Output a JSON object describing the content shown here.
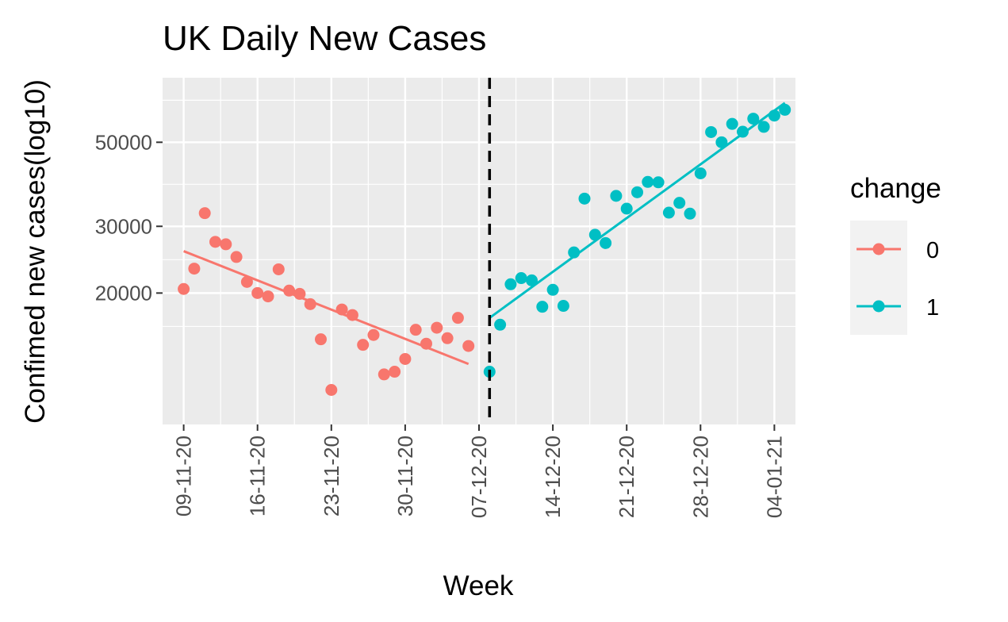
{
  "chart_data": {
    "type": "scatter",
    "title": "UK Daily New Cases",
    "xlabel": "Week",
    "ylabel": "Confimed new cases(log10)",
    "y_scale": "log10",
    "x_ticks": [
      "09-11-20",
      "16-11-20",
      "23-11-20",
      "30-11-20",
      "07-12-20",
      "14-12-20",
      "21-12-20",
      "28-12-20",
      "04-01-21"
    ],
    "y_ticks": [
      20000,
      30000,
      50000
    ],
    "y_tick_labels": [
      "20000",
      "30000",
      "50000"
    ],
    "xlim": [
      "2020-11-07",
      "2021-01-06"
    ],
    "ylim": [
      9000,
      74000
    ],
    "grid": true,
    "vline": {
      "x": "2020-12-08",
      "style": "dashed",
      "color": "#000000"
    },
    "legend": {
      "title": "change",
      "position": "right",
      "entries": [
        "0",
        "1"
      ]
    },
    "series": [
      {
        "name": "0",
        "color": "#F8766D",
        "points": [
          {
            "x": "2020-11-09",
            "y": 20500
          },
          {
            "x": "2020-11-10",
            "y": 23200
          },
          {
            "x": "2020-11-11",
            "y": 32500
          },
          {
            "x": "2020-11-12",
            "y": 27300
          },
          {
            "x": "2020-11-13",
            "y": 26900
          },
          {
            "x": "2020-11-14",
            "y": 24900
          },
          {
            "x": "2020-11-15",
            "y": 21400
          },
          {
            "x": "2020-11-16",
            "y": 20000
          },
          {
            "x": "2020-11-17",
            "y": 19600
          },
          {
            "x": "2020-11-18",
            "y": 23100
          },
          {
            "x": "2020-11-19",
            "y": 20300
          },
          {
            "x": "2020-11-20",
            "y": 19900
          },
          {
            "x": "2020-11-21",
            "y": 18700
          },
          {
            "x": "2020-11-22",
            "y": 15100
          },
          {
            "x": "2020-11-23",
            "y": 11100
          },
          {
            "x": "2020-11-24",
            "y": 18100
          },
          {
            "x": "2020-11-25",
            "y": 17500
          },
          {
            "x": "2020-11-26",
            "y": 14600
          },
          {
            "x": "2020-11-27",
            "y": 15500
          },
          {
            "x": "2020-11-28",
            "y": 12200
          },
          {
            "x": "2020-11-29",
            "y": 12400
          },
          {
            "x": "2020-11-30",
            "y": 13400
          },
          {
            "x": "2020-12-01",
            "y": 16000
          },
          {
            "x": "2020-12-02",
            "y": 14700
          },
          {
            "x": "2020-12-03",
            "y": 16200
          },
          {
            "x": "2020-12-04",
            "y": 15200
          },
          {
            "x": "2020-12-05",
            "y": 17200
          },
          {
            "x": "2020-12-06",
            "y": 14500
          }
        ],
        "trend": [
          {
            "x": "2020-11-09",
            "y": 25800
          },
          {
            "x": "2020-12-06",
            "y": 13000
          }
        ]
      },
      {
        "name": "1",
        "color": "#00BFC4",
        "points": [
          {
            "x": "2020-12-08",
            "y": 12400
          },
          {
            "x": "2020-12-09",
            "y": 16500
          },
          {
            "x": "2020-12-10",
            "y": 21100
          },
          {
            "x": "2020-12-11",
            "y": 21900
          },
          {
            "x": "2020-12-12",
            "y": 21600
          },
          {
            "x": "2020-12-13",
            "y": 18400
          },
          {
            "x": "2020-12-14",
            "y": 20400
          },
          {
            "x": "2020-12-15",
            "y": 18500
          },
          {
            "x": "2020-12-16",
            "y": 25600
          },
          {
            "x": "2020-12-17",
            "y": 35500
          },
          {
            "x": "2020-12-18",
            "y": 28500
          },
          {
            "x": "2020-12-19",
            "y": 27100
          },
          {
            "x": "2020-12-20",
            "y": 36100
          },
          {
            "x": "2020-12-21",
            "y": 33400
          },
          {
            "x": "2020-12-22",
            "y": 36900
          },
          {
            "x": "2020-12-23",
            "y": 39300
          },
          {
            "x": "2020-12-24",
            "y": 39200
          },
          {
            "x": "2020-12-25",
            "y": 32600
          },
          {
            "x": "2020-12-26",
            "y": 34600
          },
          {
            "x": "2020-12-27",
            "y": 32400
          },
          {
            "x": "2020-12-28",
            "y": 41400
          },
          {
            "x": "2020-12-29",
            "y": 53200
          },
          {
            "x": "2020-12-30",
            "y": 50000
          },
          {
            "x": "2020-12-31",
            "y": 55900
          },
          {
            "x": "2021-01-01",
            "y": 53300
          },
          {
            "x": "2021-01-02",
            "y": 57700
          },
          {
            "x": "2021-01-03",
            "y": 54900
          },
          {
            "x": "2021-01-04",
            "y": 58800
          },
          {
            "x": "2021-01-05",
            "y": 60900
          }
        ],
        "trend": [
          {
            "x": "2020-12-08",
            "y": 17200
          },
          {
            "x": "2021-01-05",
            "y": 63500
          }
        ]
      }
    ]
  }
}
